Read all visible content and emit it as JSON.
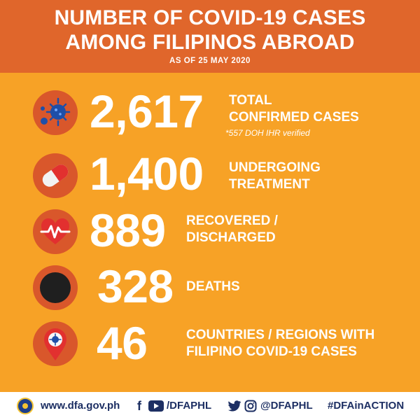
{
  "header": {
    "title_line1": "NUMBER OF COVID-19 CASES",
    "title_line2": "AMONG FILIPINOS ABROAD",
    "as_of": "AS OF 25 MAY 2020"
  },
  "stats": [
    {
      "value": "2,617",
      "label_line1": "TOTAL",
      "label_line2": "CONFIRMED CASES",
      "note": "*557 DOH IHR verified",
      "icon": "virus-icon"
    },
    {
      "value": "1,400",
      "label_line1": "UNDERGOING",
      "label_line2": "TREATMENT",
      "icon": "capsule-icon"
    },
    {
      "value": "889",
      "label_line1": "RECOVERED /",
      "label_line2": "DISCHARGED",
      "icon": "heartbeat-icon"
    },
    {
      "value": "328",
      "label_line1": "DEATHS",
      "icon": "black-circle-icon"
    },
    {
      "value": "46",
      "label_line1": "COUNTRIES / REGIONS WITH",
      "label_line2": "FILIPINO COVID-19 CASES",
      "icon": "location-pin-icon"
    }
  ],
  "footer": {
    "website": "www.dfa.gov.ph",
    "facebook_youtube_handle": "/DFAPHL",
    "twitter_instagram_handle": "@DFAPHL",
    "hashtag": "#DFAinACTION"
  },
  "colors": {
    "background": "#f7a226",
    "header": "#e0662b",
    "icon_circle": "#d9572b",
    "footer_text": "#1d2f63"
  }
}
